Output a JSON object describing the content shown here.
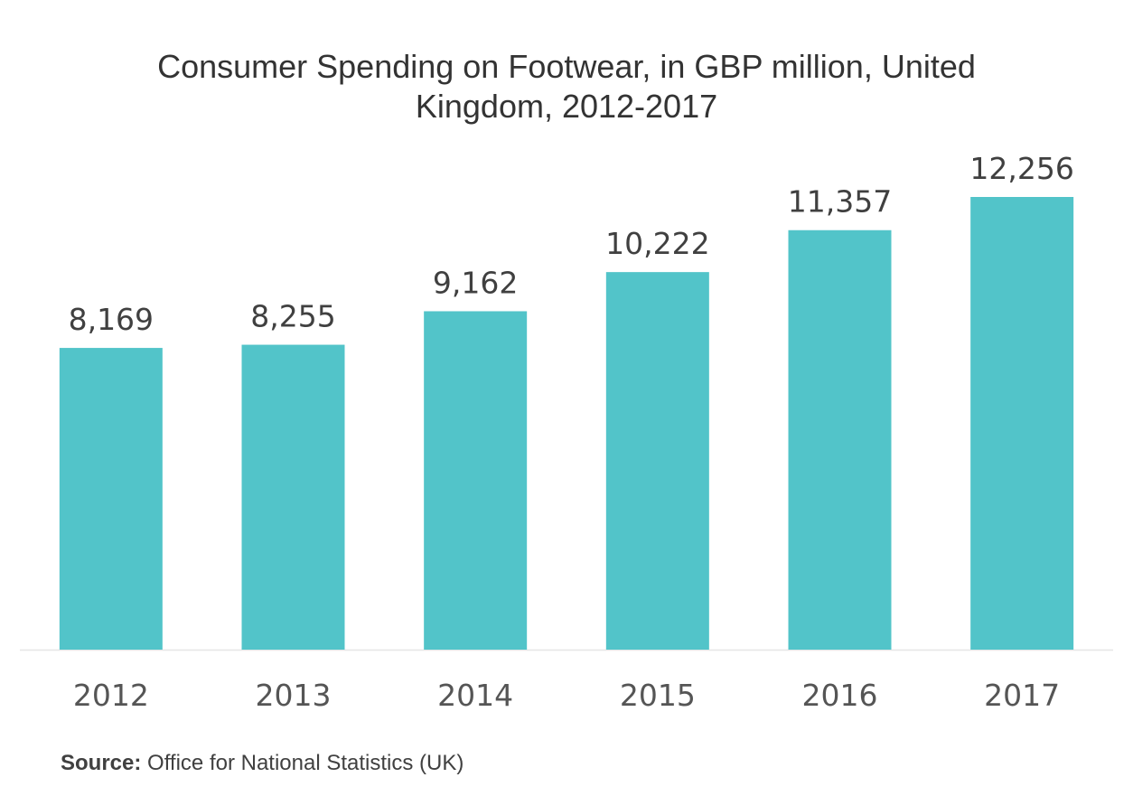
{
  "chart_data": {
    "type": "bar",
    "title": "Consumer Spending on Footwear, in GBP million, United Kingdom, 2012-2017",
    "categories": [
      "2012",
      "2013",
      "2014",
      "2015",
      "2016",
      "2017"
    ],
    "values": [
      8169,
      8255,
      9162,
      10222,
      11357,
      12256
    ],
    "data_labels": [
      "8,169",
      "8,255",
      "9,162",
      "10,222",
      "11,357",
      "12,256"
    ],
    "ylim": [
      0,
      13500
    ],
    "grid": false,
    "legend": "none",
    "bar_color": "#52c4c9",
    "axis_color": "#e6e6e6"
  },
  "source": {
    "label": "Source:",
    "text": "Office for National Statistics (UK)"
  }
}
